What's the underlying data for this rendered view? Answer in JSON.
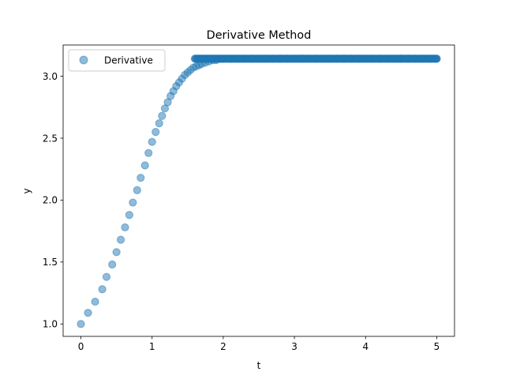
{
  "chart_data": {
    "type": "scatter",
    "title": "Derivative Method",
    "xlabel": "t",
    "ylabel": "y",
    "xlim": [
      -0.25,
      5.25
    ],
    "ylim": [
      0.9,
      3.252
    ],
    "xticks": [
      0,
      1,
      2,
      3,
      4,
      5
    ],
    "xtick_labels": [
      "0",
      "1",
      "2",
      "3",
      "4",
      "5"
    ],
    "yticks": [
      1.0,
      1.5,
      2.0,
      2.5,
      3.0
    ],
    "ytick_labels": [
      "1.0",
      "1.5",
      "2.0",
      "2.5",
      "3.0"
    ],
    "grid": false,
    "legend_position": "upper-left",
    "marker_color": "#1f77b4",
    "marker_alpha": 0.5,
    "series": [
      {
        "name": "Derivative",
        "x": [
          0.0,
          0.1,
          0.2,
          0.3,
          0.36,
          0.44,
          0.5,
          0.56,
          0.62,
          0.68,
          0.73,
          0.79,
          0.84,
          0.9,
          0.95,
          1.0,
          1.05,
          1.1,
          1.14,
          1.18,
          1.22,
          1.26,
          1.3,
          1.34,
          1.38,
          1.42,
          1.46,
          1.5,
          1.54,
          1.58,
          1.62,
          1.66,
          1.7,
          1.75,
          1.8,
          1.85,
          1.9,
          1.95,
          2.0,
          2.1,
          2.2,
          2.3,
          2.4,
          2.5,
          2.6,
          2.7,
          2.8,
          2.9,
          3.0,
          3.1,
          3.2,
          3.3,
          3.4,
          3.5,
          3.6,
          3.7,
          3.8,
          3.9,
          4.0,
          4.1,
          4.2,
          4.3,
          4.4,
          4.5,
          4.6,
          4.7,
          4.8,
          4.9,
          5.0
        ],
        "y": [
          1.0,
          1.09,
          1.18,
          1.28,
          1.38,
          1.48,
          1.58,
          1.68,
          1.78,
          1.88,
          1.98,
          2.08,
          2.18,
          2.28,
          2.38,
          2.47,
          2.55,
          2.62,
          2.68,
          2.74,
          2.79,
          2.84,
          2.88,
          2.92,
          2.95,
          2.98,
          3.01,
          3.03,
          3.05,
          3.07,
          3.08,
          3.09,
          3.1,
          3.11,
          3.12,
          3.13,
          3.13,
          3.14,
          3.14,
          3.14,
          3.14,
          3.141,
          3.141,
          3.141,
          3.141,
          3.141,
          3.141,
          3.141,
          3.141,
          3.141,
          3.141,
          3.141,
          3.141,
          3.141,
          3.141,
          3.141,
          3.141,
          3.141,
          3.141,
          3.141,
          3.141,
          3.141,
          3.141,
          3.141,
          3.141,
          3.141,
          3.141,
          3.141,
          3.141
        ],
        "dense_plateau": {
          "x_start": 1.6,
          "x_end": 5.0,
          "y": 3.141,
          "count": 320
        }
      }
    ]
  }
}
